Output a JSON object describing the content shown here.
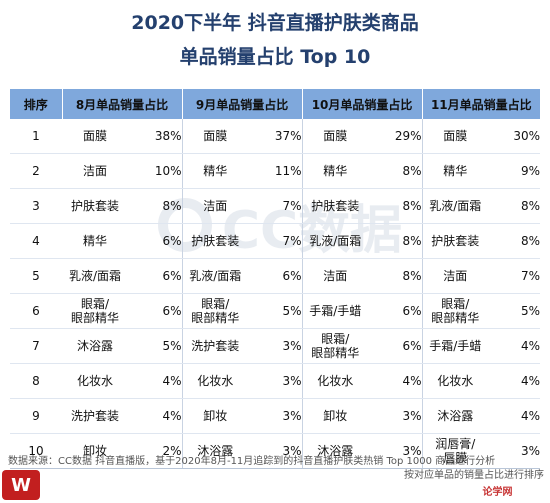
{
  "title_line1": "2020下半年 抖音直播护肤类商品",
  "title_line2": "单品销量占比 Top 10",
  "watermark_text": "CC数据",
  "table": {
    "headers": [
      "排序",
      "8月单品销量占比",
      "9月单品销量占比",
      "10月单品销量占比",
      "11月单品销量占比"
    ],
    "rows": [
      {
        "rank": "1",
        "m8": {
          "name": "面膜",
          "pct": "38%"
        },
        "m9": {
          "name": "面膜",
          "pct": "37%"
        },
        "m10": {
          "name": "面膜",
          "pct": "29%"
        },
        "m11": {
          "name": "面膜",
          "pct": "30%"
        }
      },
      {
        "rank": "2",
        "m8": {
          "name": "洁面",
          "pct": "10%"
        },
        "m9": {
          "name": "精华",
          "pct": "11%"
        },
        "m10": {
          "name": "精华",
          "pct": "8%"
        },
        "m11": {
          "name": "精华",
          "pct": "9%"
        }
      },
      {
        "rank": "3",
        "m8": {
          "name": "护肤套装",
          "pct": "8%"
        },
        "m9": {
          "name": "洁面",
          "pct": "7%"
        },
        "m10": {
          "name": "护肤套装",
          "pct": "8%"
        },
        "m11": {
          "name": "乳液/面霜",
          "pct": "8%"
        }
      },
      {
        "rank": "4",
        "m8": {
          "name": "精华",
          "pct": "6%"
        },
        "m9": {
          "name": "护肤套装",
          "pct": "7%"
        },
        "m10": {
          "name": "乳液/面霜",
          "pct": "8%"
        },
        "m11": {
          "name": "护肤套装",
          "pct": "8%"
        }
      },
      {
        "rank": "5",
        "m8": {
          "name": "乳液/面霜",
          "pct": "6%"
        },
        "m9": {
          "name": "乳液/面霜",
          "pct": "6%"
        },
        "m10": {
          "name": "洁面",
          "pct": "8%"
        },
        "m11": {
          "name": "洁面",
          "pct": "7%"
        }
      },
      {
        "rank": "6",
        "m8": {
          "name": "眼霜/\n眼部精华",
          "pct": "6%"
        },
        "m9": {
          "name": "眼霜/\n眼部精华",
          "pct": "5%"
        },
        "m10": {
          "name": "手霜/手蜡",
          "pct": "6%"
        },
        "m11": {
          "name": "眼霜/\n眼部精华",
          "pct": "5%"
        }
      },
      {
        "rank": "7",
        "m8": {
          "name": "沐浴露",
          "pct": "5%"
        },
        "m9": {
          "name": "洗护套装",
          "pct": "3%"
        },
        "m10": {
          "name": "眼霜/\n眼部精华",
          "pct": "6%"
        },
        "m11": {
          "name": "手霜/手蜡",
          "pct": "4%"
        }
      },
      {
        "rank": "8",
        "m8": {
          "name": "化妆水",
          "pct": "4%"
        },
        "m9": {
          "name": "化妆水",
          "pct": "3%"
        },
        "m10": {
          "name": "化妆水",
          "pct": "4%"
        },
        "m11": {
          "name": "化妆水",
          "pct": "4%"
        }
      },
      {
        "rank": "9",
        "m8": {
          "name": "洗护套装",
          "pct": "4%"
        },
        "m9": {
          "name": "卸妆",
          "pct": "3%"
        },
        "m10": {
          "name": "卸妆",
          "pct": "3%"
        },
        "m11": {
          "name": "沐浴露",
          "pct": "4%"
        }
      },
      {
        "rank": "10",
        "m8": {
          "name": "卸妆",
          "pct": "2%"
        },
        "m9": {
          "name": "沐浴露",
          "pct": "3%"
        },
        "m10": {
          "name": "沐浴露",
          "pct": "3%"
        },
        "m11": {
          "name": "润唇膏/\n唇膜",
          "pct": "3%"
        }
      }
    ]
  },
  "footnote": {
    "line1": "数据来源：CC数据 抖音直播版，基于2020年8月-11月追踪到的抖音直播护肤类热销 Top 1000 商品进行分析",
    "line2": "按对应单品的销量占比进行排序"
  },
  "logo_right_text": "论学网",
  "colors": {
    "title": "#24406e",
    "header_bg": "#7fa8dc"
  }
}
